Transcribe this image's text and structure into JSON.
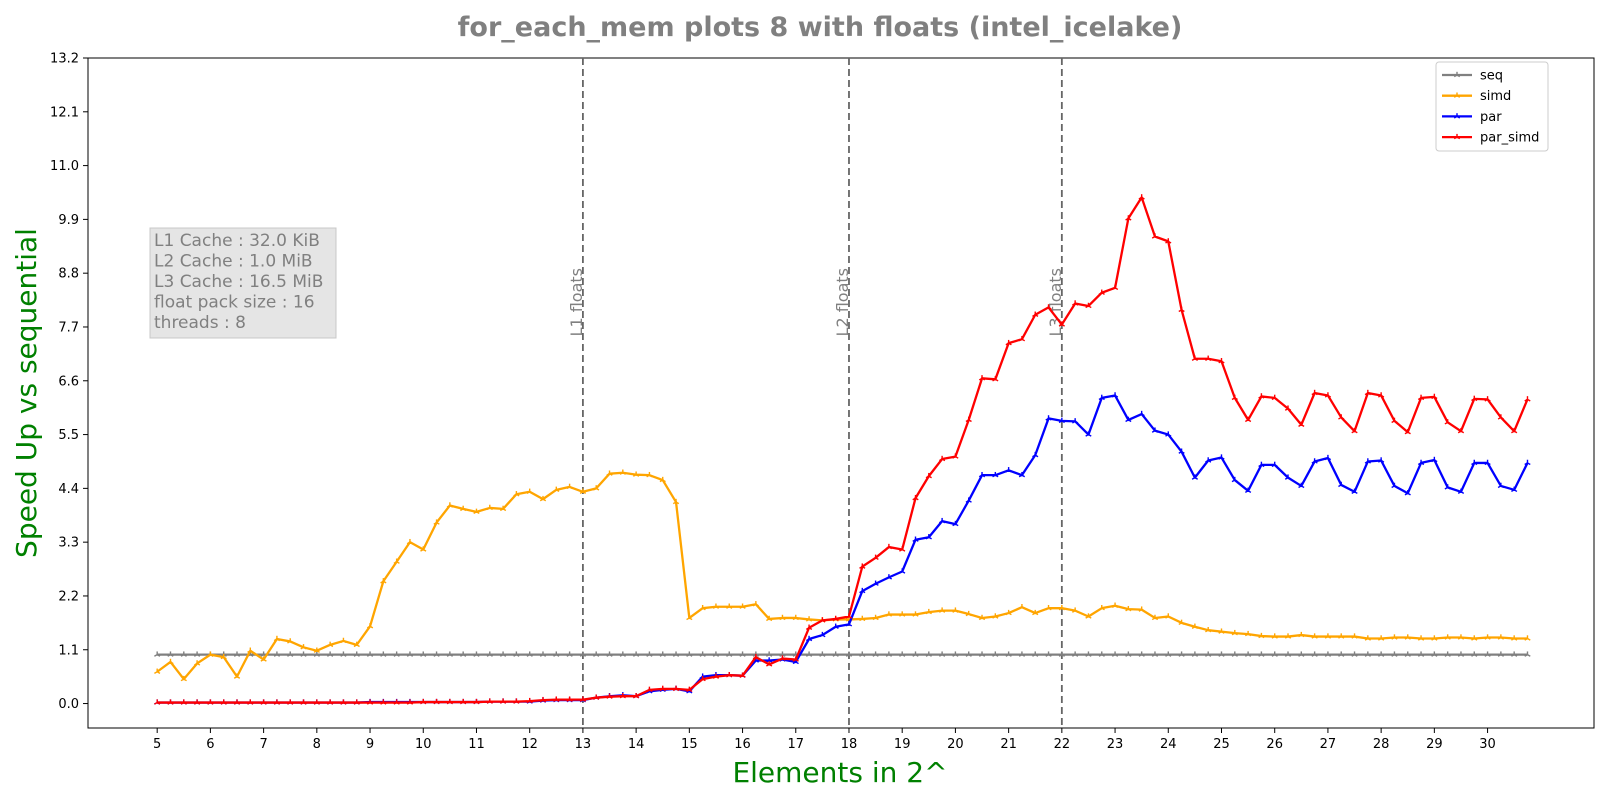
{
  "chart_data": {
    "type": "line",
    "title": "for_each_mem plots 8 with floats  (intel_icelake)",
    "xlabel": "Elements in 2^",
    "ylabel": "Speed Up vs sequential",
    "xlim": [
      3.7,
      32.0
    ],
    "ylim": [
      -0.5,
      13.2
    ],
    "xticks": [
      5,
      6,
      7,
      8,
      9,
      10,
      11,
      12,
      13,
      14,
      15,
      16,
      17,
      18,
      19,
      20,
      21,
      22,
      23,
      24,
      25,
      26,
      27,
      28,
      29,
      30
    ],
    "yticks": [
      0.0,
      1.1,
      2.2,
      3.3,
      4.4,
      5.5,
      6.6,
      7.7,
      8.8,
      9.9,
      11.0,
      12.1,
      13.2
    ],
    "ytick_labels": [
      "0.0",
      "1.1",
      "2.2",
      "3.3",
      "4.4",
      "5.5",
      "6.6",
      "7.7",
      "8.8",
      "9.9",
      "11.0",
      "12.1",
      "13.2"
    ],
    "legend_position": "top-right",
    "grid": false,
    "x": [
      5.0,
      5.25,
      5.5,
      5.75,
      6.0,
      6.25,
      6.5,
      6.75,
      7.0,
      7.25,
      7.5,
      7.75,
      8.0,
      8.25,
      8.5,
      8.75,
      9.0,
      9.25,
      9.5,
      9.75,
      10.0,
      10.25,
      10.5,
      10.75,
      11.0,
      11.25,
      11.5,
      11.75,
      12.0,
      12.25,
      12.5,
      12.75,
      13.0,
      13.25,
      13.5,
      13.75,
      14.0,
      14.25,
      14.5,
      14.75,
      15.0,
      15.25,
      15.5,
      15.75,
      16.0,
      16.25,
      16.5,
      16.75,
      17.0,
      17.25,
      17.5,
      17.75,
      18.0,
      18.25,
      18.5,
      18.75,
      19.0,
      19.25,
      19.5,
      19.75,
      20.0,
      20.25,
      20.5,
      20.75,
      21.0,
      21.25,
      21.5,
      21.75,
      22.0,
      22.25,
      22.5,
      22.75,
      23.0,
      23.25,
      23.5,
      23.75,
      24.0,
      24.25,
      24.5,
      24.75,
      25.0,
      25.25,
      25.5,
      25.75,
      26.0,
      26.25,
      26.5,
      26.75,
      27.0,
      27.25,
      27.5,
      27.75,
      28.0,
      28.25,
      28.5,
      28.75,
      29.0,
      29.25,
      29.5,
      29.75,
      30.0,
      30.25,
      30.5,
      30.75
    ],
    "series": [
      {
        "name": "seq",
        "color": "#808080",
        "values": [
          1.0,
          1.0,
          1.0,
          1.0,
          1.0,
          1.0,
          1.0,
          1.0,
          1.0,
          1.0,
          1.0,
          1.0,
          1.0,
          1.0,
          1.0,
          1.0,
          1.0,
          1.0,
          1.0,
          1.0,
          1.0,
          1.0,
          1.0,
          1.0,
          1.0,
          1.0,
          1.0,
          1.0,
          1.0,
          1.0,
          1.0,
          1.0,
          1.0,
          1.0,
          1.0,
          1.0,
          1.0,
          1.0,
          1.0,
          1.0,
          1.0,
          1.0,
          1.0,
          1.0,
          1.0,
          1.0,
          1.0,
          1.0,
          1.0,
          1.0,
          1.0,
          1.0,
          1.0,
          1.0,
          1.0,
          1.0,
          1.0,
          1.0,
          1.0,
          1.0,
          1.0,
          1.0,
          1.0,
          1.0,
          1.0,
          1.0,
          1.0,
          1.0,
          1.0,
          1.0,
          1.0,
          1.0,
          1.0,
          1.0,
          1.0,
          1.0,
          1.0,
          1.0,
          1.0,
          1.0,
          1.0,
          1.0,
          1.0,
          1.0,
          1.0,
          1.0,
          1.0,
          1.0,
          1.0,
          1.0,
          1.0,
          1.0,
          1.0,
          1.0,
          1.0,
          1.0,
          1.0,
          1.0,
          1.0,
          1.0,
          1.0,
          1.0,
          1.0,
          1.0
        ]
      },
      {
        "name": "simd",
        "color": "#FFA500",
        "values": [
          0.65,
          0.85,
          0.5,
          0.82,
          1.0,
          0.95,
          0.55,
          1.08,
          0.9,
          1.32,
          1.27,
          1.15,
          1.08,
          1.2,
          1.28,
          1.2,
          1.58,
          2.5,
          2.9,
          3.3,
          3.15,
          3.7,
          4.05,
          3.98,
          3.92,
          4.0,
          3.98,
          4.28,
          4.33,
          4.18,
          4.37,
          4.43,
          4.33,
          4.4,
          4.7,
          4.72,
          4.68,
          4.67,
          4.57,
          4.12,
          1.75,
          1.95,
          1.98,
          1.98,
          1.98,
          2.03,
          1.73,
          1.75,
          1.75,
          1.72,
          1.7,
          1.72,
          1.72,
          1.73,
          1.75,
          1.82,
          1.82,
          1.82,
          1.87,
          1.9,
          1.9,
          1.83,
          1.75,
          1.78,
          1.85,
          1.97,
          1.85,
          1.95,
          1.95,
          1.9,
          1.78,
          1.95,
          2.0,
          1.93,
          1.92,
          1.75,
          1.78,
          1.65,
          1.57,
          1.5,
          1.47,
          1.44,
          1.42,
          1.38,
          1.37,
          1.37,
          1.4,
          1.37,
          1.37,
          1.37,
          1.37,
          1.33,
          1.33,
          1.35,
          1.35,
          1.33,
          1.33,
          1.35,
          1.35,
          1.33,
          1.35,
          1.35,
          1.33,
          1.33
        ]
      },
      {
        "name": "par",
        "color": "#0000FF",
        "values": [
          0.02,
          0.02,
          0.02,
          0.02,
          0.02,
          0.02,
          0.02,
          0.02,
          0.02,
          0.02,
          0.02,
          0.02,
          0.02,
          0.02,
          0.02,
          0.02,
          0.03,
          0.03,
          0.03,
          0.03,
          0.03,
          0.03,
          0.03,
          0.03,
          0.03,
          0.04,
          0.04,
          0.04,
          0.04,
          0.06,
          0.07,
          0.07,
          0.07,
          0.12,
          0.15,
          0.17,
          0.15,
          0.25,
          0.28,
          0.3,
          0.25,
          0.55,
          0.58,
          0.58,
          0.57,
          0.88,
          0.88,
          0.9,
          0.85,
          1.32,
          1.4,
          1.57,
          1.62,
          2.3,
          2.45,
          2.58,
          2.7,
          3.35,
          3.4,
          3.73,
          3.67,
          4.15,
          4.67,
          4.67,
          4.77,
          4.67,
          5.08,
          5.83,
          5.78,
          5.77,
          5.5,
          6.25,
          6.3,
          5.8,
          5.92,
          5.58,
          5.5,
          5.15,
          4.62,
          4.97,
          5.03,
          4.57,
          4.35,
          4.88,
          4.88,
          4.62,
          4.45,
          4.95,
          5.02,
          4.47,
          4.33,
          4.95,
          4.97,
          4.45,
          4.3,
          4.92,
          4.98,
          4.42,
          4.33,
          4.92,
          4.92,
          4.45,
          4.37,
          4.92
        ]
      },
      {
        "name": "par_simd",
        "color": "#FF0000",
        "values": [
          0.02,
          0.02,
          0.02,
          0.02,
          0.02,
          0.02,
          0.02,
          0.02,
          0.02,
          0.02,
          0.02,
          0.02,
          0.02,
          0.02,
          0.02,
          0.02,
          0.02,
          0.02,
          0.02,
          0.02,
          0.03,
          0.03,
          0.03,
          0.03,
          0.03,
          0.04,
          0.04,
          0.04,
          0.05,
          0.07,
          0.08,
          0.08,
          0.08,
          0.12,
          0.14,
          0.15,
          0.15,
          0.28,
          0.3,
          0.3,
          0.28,
          0.5,
          0.55,
          0.58,
          0.57,
          0.95,
          0.8,
          0.92,
          0.9,
          1.55,
          1.7,
          1.73,
          1.78,
          2.8,
          2.98,
          3.2,
          3.15,
          4.2,
          4.65,
          5.0,
          5.05,
          5.8,
          6.65,
          6.63,
          7.37,
          7.45,
          7.95,
          8.1,
          7.75,
          8.18,
          8.13,
          8.4,
          8.5,
          9.92,
          10.35,
          9.55,
          9.45,
          8.05,
          7.05,
          7.05,
          7.0,
          6.25,
          5.8,
          6.28,
          6.25,
          6.03,
          5.7,
          6.35,
          6.3,
          5.85,
          5.57,
          6.35,
          6.3,
          5.78,
          5.55,
          6.25,
          6.27,
          5.75,
          5.57,
          6.23,
          6.22,
          5.85,
          5.57,
          6.22
        ]
      }
    ],
    "vlines": [
      {
        "x": 13,
        "label": "L1 floats"
      },
      {
        "x": 18,
        "label": "L2 floats"
      },
      {
        "x": 22,
        "label": "L3 floats"
      }
    ],
    "info_box": {
      "lines": [
        "L1 Cache : 32.0 KiB",
        "L2 Cache : 1.0 MiB",
        "L3 Cache : 16.5 MiB",
        "float pack size : 16",
        "threads : 8"
      ]
    }
  }
}
